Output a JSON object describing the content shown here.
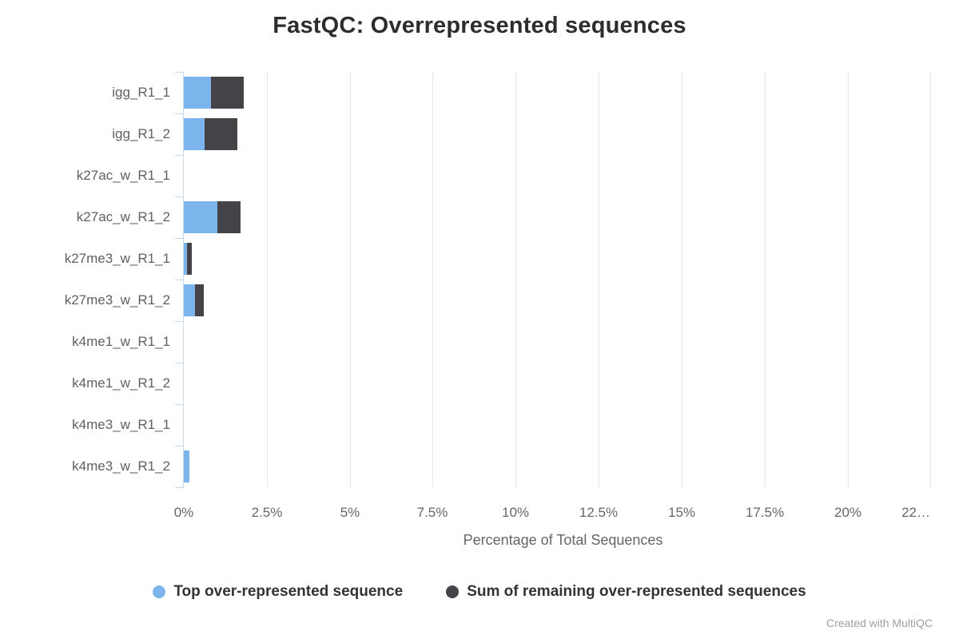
{
  "title": "FastQC: Overrepresented sequences",
  "footer": "Created with MultiQC",
  "colors": {
    "series_blue": "#7cb5ec",
    "series_dark": "#434348",
    "gridline": "#e6e6e6",
    "axis_line": "#ccd6eb",
    "title_text": "#2d2d2d",
    "axis_text": "#666666",
    "footer_text": "#9e9e9e"
  },
  "chart_data": {
    "type": "bar",
    "orientation": "horizontal",
    "stacked": true,
    "grid": true,
    "legend_position": "bottom",
    "title": "FastQC: Overrepresented sequences",
    "xlabel": "Percentage of Total Sequences",
    "ylabel": "",
    "xlim": [
      0,
      22.9
    ],
    "categories": [
      "igg_R1_1",
      "igg_R1_2",
      "k27ac_w_R1_1",
      "k27ac_w_R1_2",
      "k27me3_w_R1_1",
      "k27me3_w_R1_2",
      "k4me1_w_R1_1",
      "k4me1_w_R1_2",
      "k4me3_w_R1_1",
      "k4me3_w_R1_2"
    ],
    "x_ticks": [
      {
        "value": 0,
        "label": "0%"
      },
      {
        "value": 2.5,
        "label": "2.5%"
      },
      {
        "value": 5,
        "label": "5%"
      },
      {
        "value": 7.5,
        "label": "7.5%"
      },
      {
        "value": 10,
        "label": "10%"
      },
      {
        "value": 12.5,
        "label": "12.5%"
      },
      {
        "value": 15,
        "label": "15%"
      },
      {
        "value": 17.5,
        "label": "17.5%"
      },
      {
        "value": 20,
        "label": "20%"
      },
      {
        "value": 22.5,
        "label": "22…",
        "align": "right"
      }
    ],
    "series": [
      {
        "name": "Top over-represented sequence",
        "color": "#7cb5ec",
        "values": [
          0.83,
          0.63,
          0,
          1.0,
          0.09,
          0.33,
          0,
          0,
          0,
          0.17
        ]
      },
      {
        "name": "Sum of remaining over-represented sequences",
        "color": "#434348",
        "values": [
          0.98,
          0.99,
          0,
          0.71,
          0.14,
          0.26,
          0,
          0,
          0,
          0
        ]
      }
    ]
  }
}
